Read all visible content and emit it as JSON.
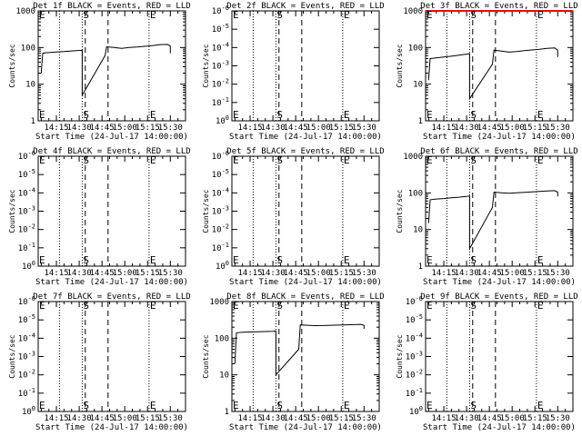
{
  "chart_data": [
    {
      "title": "Det 1f BLACK = Events, RED = LLD",
      "xlabel": "Start Time (24-Jul-17 14:00:00)",
      "ylabel": "Counts/sec",
      "scale": "log",
      "yticks": [
        "1",
        "10",
        "100",
        "1000"
      ],
      "ylim": [
        1,
        1000
      ],
      "xticks": [
        "14:15",
        "14:30",
        "14:45",
        "15:00",
        "15:15",
        "15:30"
      ],
      "xlim_minutes": [
        3,
        100
      ],
      "markers": [
        {
          "label": "E",
          "minute": 3
        },
        {
          "label": "S",
          "minute": 32
        },
        {
          "label": "E",
          "minute": 76
        }
      ],
      "dotted_lines_minutes": [
        17,
        32,
        76
      ],
      "dashed_lines_minutes": [
        34,
        49
      ],
      "series": [
        {
          "color": "#000000",
          "points": [
            [
              5,
              20
            ],
            [
              6,
              70
            ],
            [
              8,
              72
            ],
            [
              12,
              74
            ],
            [
              16,
              76
            ],
            [
              20,
              78
            ],
            [
              24,
              80
            ],
            [
              28,
              82
            ],
            [
              32,
              84
            ],
            [
              32,
              5
            ],
            [
              47,
              60
            ],
            [
              48,
              105
            ],
            [
              53,
              100
            ],
            [
              58,
              95
            ],
            [
              63,
              100
            ],
            [
              68,
              103
            ],
            [
              73,
              108
            ],
            [
              78,
              112
            ],
            [
              83,
              120
            ],
            [
              88,
              122
            ],
            [
              90,
              110
            ],
            [
              90,
              70
            ]
          ]
        }
      ]
    },
    {
      "title": "Det 2f BLACK = Events, RED = LLD",
      "xlabel": "Start Time (24-Jul-17 14:00:00)",
      "ylabel": "Counts/sec",
      "scale": "sci",
      "yticks": [
        "10^0",
        "10^-1",
        "10^-2",
        "10^-3",
        "10^-4",
        "10^-5",
        "10^-6"
      ],
      "xticks": [
        "14:15",
        "14:30",
        "14:45",
        "15:00",
        "15:15",
        "15:30"
      ],
      "xlim_minutes": [
        3,
        100
      ],
      "markers": [
        {
          "label": "E",
          "minute": 3
        },
        {
          "label": "S",
          "minute": 32
        },
        {
          "label": "E",
          "minute": 76
        }
      ],
      "dotted_lines_minutes": [
        17,
        32,
        76
      ],
      "dashed_lines_minutes": [
        34,
        49
      ],
      "series": []
    },
    {
      "title": "Det 3f BLACK = Events, RED = LLD",
      "xlabel": "Start Time (24-Jul-17 14:00:00)",
      "ylabel": "Counts/sec",
      "scale": "log",
      "yticks": [
        "1",
        "10",
        "100",
        "1000"
      ],
      "ylim": [
        1,
        1000
      ],
      "xticks": [
        "14:15",
        "14:30",
        "14:45",
        "15:00",
        "15:15",
        "15:30"
      ],
      "xlim_minutes": [
        3,
        100
      ],
      "markers": [
        {
          "label": "E",
          "minute": 3
        },
        {
          "label": "S",
          "minute": 32
        },
        {
          "label": "E",
          "minute": 76
        }
      ],
      "dotted_lines_minutes": [
        17,
        32,
        76
      ],
      "dashed_lines_minutes": [
        34,
        49
      ],
      "series": [
        {
          "color": "#000000",
          "points": [
            [
              5,
              13
            ],
            [
              6,
              50
            ],
            [
              10,
              52
            ],
            [
              15,
              55
            ],
            [
              20,
              58
            ],
            [
              25,
              62
            ],
            [
              30,
              66
            ],
            [
              32,
              68
            ],
            [
              32,
              4
            ],
            [
              47,
              35
            ],
            [
              48,
              85
            ],
            [
              53,
              80
            ],
            [
              58,
              75
            ],
            [
              63,
              78
            ],
            [
              68,
              82
            ],
            [
              73,
              86
            ],
            [
              78,
              90
            ],
            [
              83,
              95
            ],
            [
              88,
              98
            ],
            [
              90,
              85
            ],
            [
              90,
              55
            ]
          ]
        },
        {
          "color": "#ff0000",
          "points": [
            [
              3,
              1000
            ],
            [
              100,
              1000
            ]
          ]
        }
      ]
    },
    {
      "title": "Det 4f BLACK = Events, RED = LLD",
      "xlabel": "Start Time (24-Jul-17 14:00:00)",
      "ylabel": "Counts/sec",
      "scale": "sci",
      "yticks": [
        "10^0",
        "10^-1",
        "10^-2",
        "10^-3",
        "10^-4",
        "10^-5",
        "10^-6"
      ],
      "xticks": [
        "14:15",
        "14:30",
        "14:45",
        "15:00",
        "15:15",
        "15:30"
      ],
      "xlim_minutes": [
        3,
        100
      ],
      "markers": [
        {
          "label": "E",
          "minute": 3
        },
        {
          "label": "S",
          "minute": 32
        },
        {
          "label": "E",
          "minute": 76
        }
      ],
      "dotted_lines_minutes": [
        17,
        32,
        76
      ],
      "dashed_lines_minutes": [
        34,
        49
      ],
      "series": []
    },
    {
      "title": "Det 5f BLACK = Events, RED = LLD",
      "xlabel": "Start Time (24-Jul-17 14:00:00)",
      "ylabel": "Counts/sec",
      "scale": "sci",
      "yticks": [
        "10^0",
        "10^-1",
        "10^-2",
        "10^-3",
        "10^-4",
        "10^-5",
        "10^-6"
      ],
      "xticks": [
        "14:15",
        "14:30",
        "14:45",
        "15:00",
        "15:15",
        "15:30"
      ],
      "xlim_minutes": [
        3,
        100
      ],
      "markers": [
        {
          "label": "E",
          "minute": 3
        },
        {
          "label": "S",
          "minute": 32
        },
        {
          "label": "E",
          "minute": 76
        }
      ],
      "dotted_lines_minutes": [
        17,
        32,
        76
      ],
      "dashed_lines_minutes": [
        34,
        49
      ],
      "series": []
    },
    {
      "title": "Det 6f BLACK = Events, RED = LLD",
      "xlabel": "Start Time (24-Jul-17 14:00:00)",
      "ylabel": "Counts/sec",
      "scale": "log",
      "yticks": [
        "1",
        "10",
        "100",
        "1000"
      ],
      "ylim": [
        1,
        1000
      ],
      "xticks": [
        "14:15",
        "14:30",
        "14:45",
        "15:00",
        "15:15",
        "15:30"
      ],
      "xlim_minutes": [
        3,
        100
      ],
      "markers": [
        {
          "label": "E",
          "minute": 3
        },
        {
          "label": "S",
          "minute": 32
        },
        {
          "label": "E",
          "minute": 76
        }
      ],
      "dotted_lines_minutes": [
        17,
        32,
        76
      ],
      "dashed_lines_minutes": [
        34,
        49
      ],
      "series": [
        {
          "color": "#000000",
          "points": [
            [
              5,
              15
            ],
            [
              6,
              65
            ],
            [
              10,
              68
            ],
            [
              15,
              70
            ],
            [
              20,
              73
            ],
            [
              25,
              76
            ],
            [
              30,
              80
            ],
            [
              32,
              82
            ],
            [
              32,
              3
            ],
            [
              47,
              40
            ],
            [
              48,
              105
            ],
            [
              53,
              100
            ],
            [
              58,
              98
            ],
            [
              63,
              100
            ],
            [
              68,
              103
            ],
            [
              73,
              106
            ],
            [
              78,
              110
            ],
            [
              83,
              113
            ],
            [
              88,
              115
            ],
            [
              90,
              105
            ],
            [
              90,
              80
            ]
          ]
        }
      ]
    },
    {
      "title": "Det 7f BLACK = Events, RED = LLD",
      "xlabel": "Start Time (24-Jul-17 14:00:00)",
      "ylabel": "Counts/sec",
      "scale": "sci",
      "yticks": [
        "10^0",
        "10^-1",
        "10^-2",
        "10^-3",
        "10^-4",
        "10^-5",
        "10^-6"
      ],
      "xticks": [
        "14:15",
        "14:30",
        "14:45",
        "15:00",
        "15:15",
        "15:30"
      ],
      "xlim_minutes": [
        3,
        100
      ],
      "markers": [
        {
          "label": "E",
          "minute": 3
        },
        {
          "label": "S",
          "minute": 32
        },
        {
          "label": "E",
          "minute": 76
        }
      ],
      "dotted_lines_minutes": [
        17,
        32,
        76
      ],
      "dashed_lines_minutes": [
        34,
        49
      ],
      "series": []
    },
    {
      "title": "Det 8f BLACK = Events, RED = LLD",
      "xlabel": "Start Time (24-Jul-17 14:00:00)",
      "ylabel": "Counts/sec",
      "scale": "log",
      "yticks": [
        "1",
        "10",
        "100",
        "1000"
      ],
      "ylim": [
        1,
        1000
      ],
      "xticks": [
        "14:15",
        "14:30",
        "14:45",
        "15:00",
        "15:15",
        "15:30"
      ],
      "xlim_minutes": [
        3,
        100
      ],
      "markers": [
        {
          "label": "E",
          "minute": 3
        },
        {
          "label": "S",
          "minute": 32
        },
        {
          "label": "E",
          "minute": 76
        }
      ],
      "dotted_lines_minutes": [
        17,
        32,
        76
      ],
      "dashed_lines_minutes": [
        34,
        49
      ],
      "series": [
        {
          "color": "#000000",
          "points": [
            [
              5,
              20
            ],
            [
              6,
              140
            ],
            [
              10,
              145
            ],
            [
              15,
              148
            ],
            [
              20,
              150
            ],
            [
              25,
              152
            ],
            [
              30,
              155
            ],
            [
              32,
              158
            ],
            [
              32,
              10
            ],
            [
              47,
              50
            ],
            [
              48,
              230
            ],
            [
              53,
              225
            ],
            [
              58,
              220
            ],
            [
              63,
              222
            ],
            [
              68,
              225
            ],
            [
              73,
              228
            ],
            [
              78,
              232
            ],
            [
              83,
              235
            ],
            [
              88,
              238
            ],
            [
              90,
              225
            ],
            [
              90,
              180
            ]
          ]
        }
      ]
    },
    {
      "title": "Det 9f BLACK = Events, RED = LLD",
      "xlabel": "Start Time (24-Jul-17 14:00:00)",
      "ylabel": "Counts/sec",
      "scale": "sci",
      "yticks": [
        "10^0",
        "10^-1",
        "10^-2",
        "10^-3",
        "10^-4",
        "10^-5",
        "10^-6"
      ],
      "xticks": [
        "14:15",
        "14:30",
        "14:45",
        "15:00",
        "15:15",
        "15:30"
      ],
      "xlim_minutes": [
        3,
        100
      ],
      "markers": [
        {
          "label": "E",
          "minute": 3
        },
        {
          "label": "S",
          "minute": 32
        },
        {
          "label": "E",
          "minute": 76
        }
      ],
      "dotted_lines_minutes": [
        17,
        32,
        76
      ],
      "dashed_lines_minutes": [
        34,
        49
      ],
      "series": []
    }
  ]
}
